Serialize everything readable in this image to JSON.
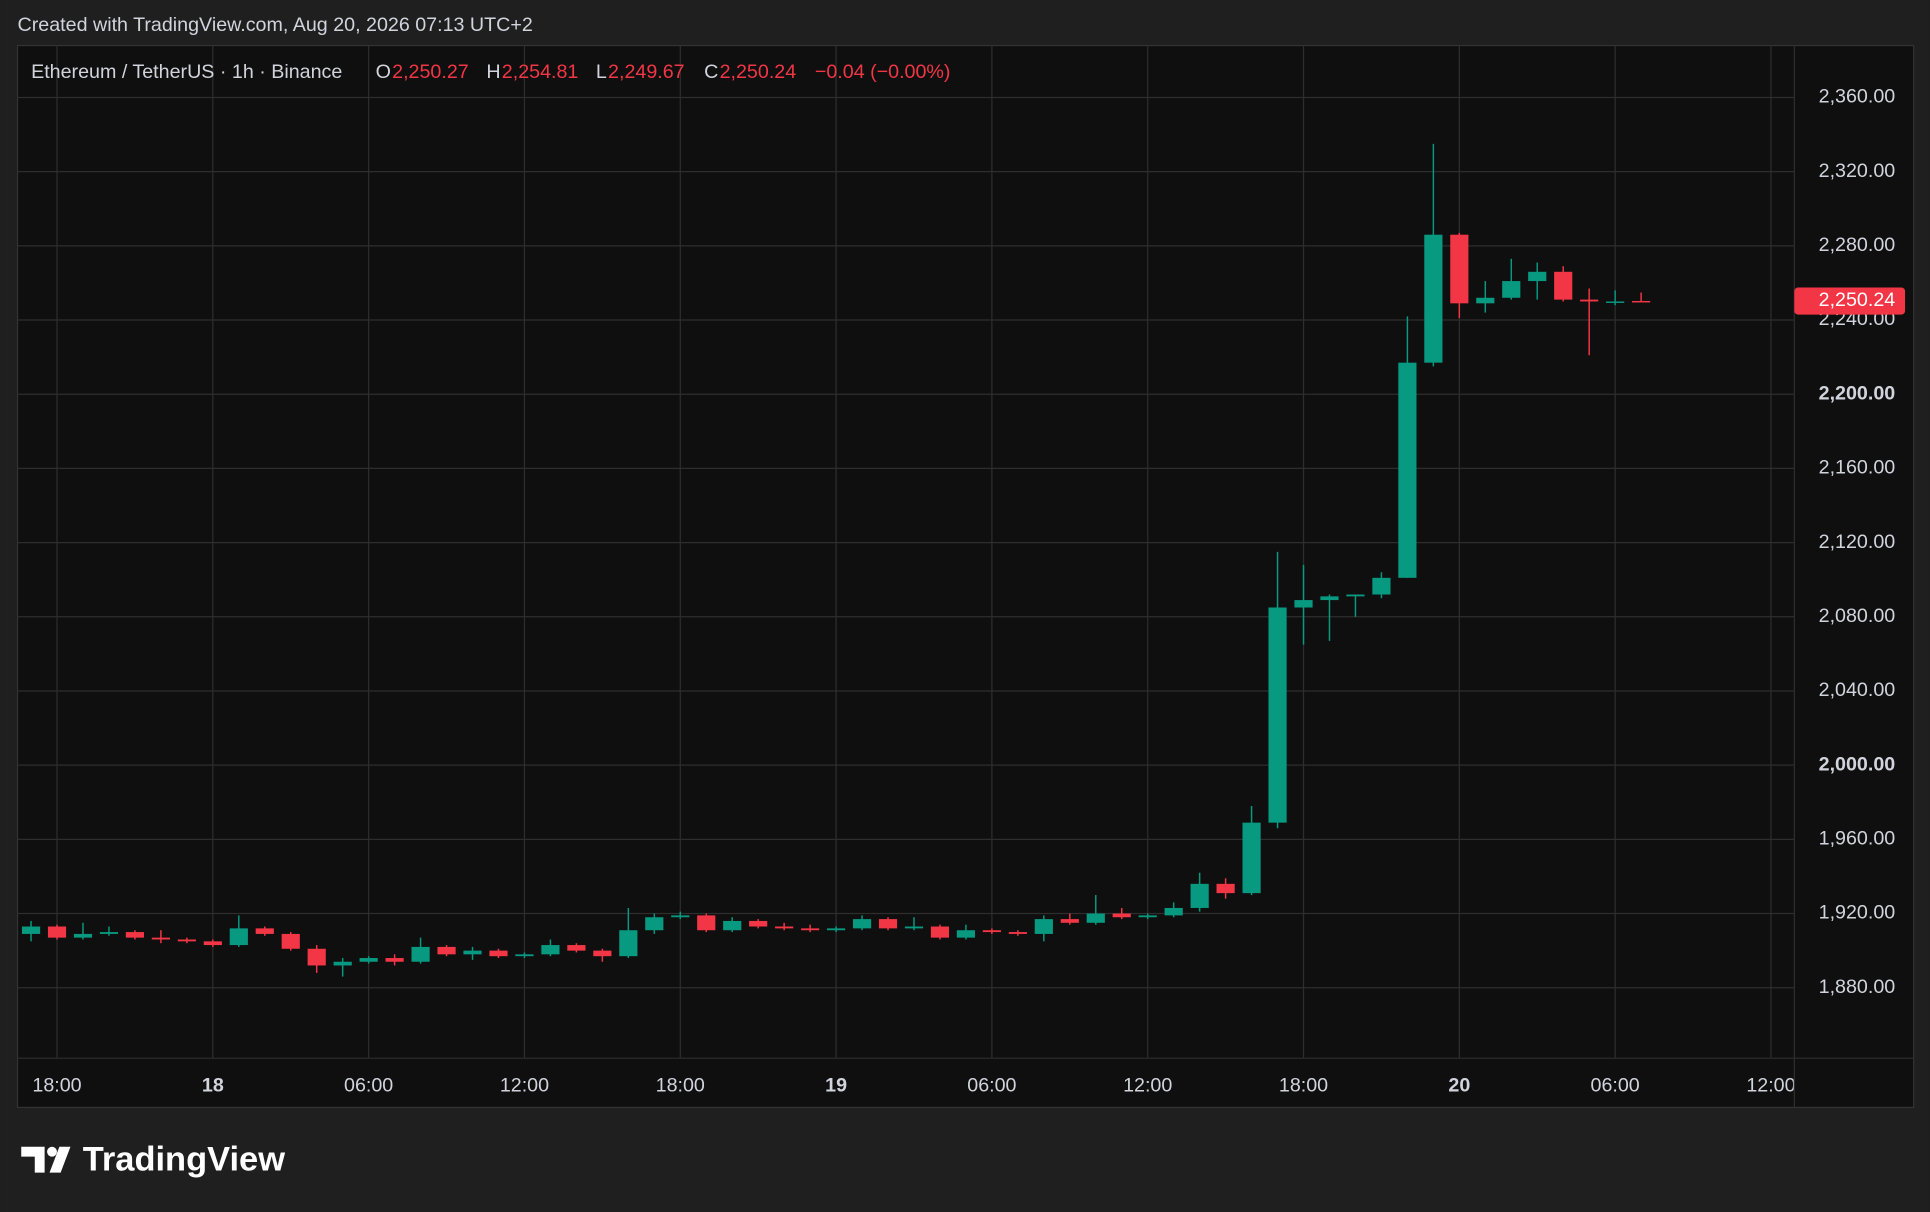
{
  "header": {
    "credit": "Created with TradingView.com, Aug 20, 2026 07:13 UTC+2"
  },
  "chart_data": {
    "type": "candlestick",
    "symbol": "Ethereum / TetherUS · 1h · Binance",
    "ohlc_legend": [
      {
        "key": "O",
        "label": "2,250.27"
      },
      {
        "key": "H",
        "label": "2,254.81"
      },
      {
        "key": "L",
        "label": "2,249.67"
      },
      {
        "key": "C",
        "label": "2,250.24"
      }
    ],
    "change": "−0.04 (−0.00%)",
    "last_price_label": "2,250.24",
    "up_color": "#089981",
    "down_color": "#f23645",
    "x": [
      17,
      18,
      19,
      20,
      21,
      22,
      23,
      24,
      25,
      26,
      27,
      28,
      29,
      30,
      31,
      32,
      33,
      34,
      35,
      36,
      37,
      38,
      39,
      40,
      41,
      42,
      43,
      44,
      45,
      46,
      47,
      48,
      49,
      50,
      51,
      52,
      53,
      54,
      55,
      56,
      57,
      58,
      59,
      60,
      61,
      62,
      63,
      64,
      65,
      66,
      67,
      68,
      69,
      70,
      71,
      72,
      73,
      74,
      75,
      76,
      77,
      78,
      79
    ],
    "open": [
      1909,
      1913,
      1907,
      1909,
      1910,
      1907,
      1906,
      1905,
      1903,
      1912,
      1909,
      1901,
      1892,
      1894,
      1896,
      1894,
      1902,
      1898,
      1900,
      1897,
      1898,
      1903,
      1900,
      1897,
      1911,
      1918,
      1919,
      1911,
      1916,
      1913,
      1912,
      1911,
      1912,
      1917,
      1912,
      1913,
      1907,
      1911,
      1910,
      1909,
      1917,
      1915,
      1920,
      1918,
      1919,
      1923,
      1936,
      1931,
      1969,
      2085,
      2089,
      2091,
      2092,
      2101,
      2217,
      2286,
      2249,
      2252,
      2261,
      2266,
      2251,
      2250,
      2250.27
    ],
    "high": [
      1916,
      1914,
      1915,
      1913,
      1911,
      1911,
      1907,
      1906,
      1919,
      1913,
      1910,
      1903,
      1896,
      1897,
      1898,
      1907,
      1903,
      1902,
      1901,
      1899,
      1906,
      1904,
      1901,
      1923,
      1920,
      1921,
      1920,
      1918,
      1917,
      1915,
      1914,
      1913,
      1919,
      1918,
      1918,
      1914,
      1914,
      1912,
      1911,
      1919,
      1920,
      1930,
      1923,
      1920,
      1926,
      1942,
      1939,
      1978,
      2115,
      2108,
      2092,
      2092,
      2104,
      2242,
      2335,
      2287,
      2261,
      2273,
      2271,
      2269,
      2257,
      2256,
      2254.81
    ],
    "low": [
      1905,
      1906,
      1906,
      1908,
      1906,
      1904,
      1904,
      1902,
      1902,
      1908,
      1900,
      1888,
      1886,
      1893,
      1892,
      1893,
      1897,
      1895,
      1896,
      1896,
      1897,
      1899,
      1894,
      1896,
      1909,
      1917,
      1910,
      1910,
      1912,
      1911,
      1910,
      1910,
      1911,
      1911,
      1911,
      1906,
      1906,
      1909,
      1908,
      1905,
      1914,
      1914,
      1917,
      1917,
      1918,
      1921,
      1928,
      1930,
      1966,
      2065,
      2067,
      2080,
      2090,
      2101,
      2215,
      2241,
      2244,
      2251,
      2251,
      2250,
      2221,
      2248,
      2249.67
    ],
    "close": [
      1913,
      1907,
      1909,
      1910,
      1907,
      1906,
      1905,
      1903,
      1912,
      1909,
      1901,
      1892,
      1894,
      1896,
      1894,
      1902,
      1898,
      1900,
      1897,
      1898,
      1903,
      1900,
      1897,
      1911,
      1918,
      1919,
      1911,
      1916,
      1913,
      1912,
      1911,
      1912,
      1917,
      1912,
      1913,
      1907,
      1911,
      1910,
      1909,
      1917,
      1915,
      1920,
      1918,
      1919,
      1923,
      1936,
      1931,
      1969,
      2085,
      2089,
      2091,
      2092,
      2101,
      2217,
      2286,
      2249,
      2252,
      2261,
      2266,
      2251,
      2250,
      2250,
      2250.24
    ],
    "xlim": [
      16.48,
      84.9
    ],
    "xticks": [
      {
        "value": 18,
        "label": "18:00"
      },
      {
        "value": 24,
        "label": "18"
      },
      {
        "value": 30,
        "label": "06:00"
      },
      {
        "value": 36,
        "label": "12:00"
      },
      {
        "value": 42,
        "label": "18:00"
      },
      {
        "value": 48,
        "label": "19"
      },
      {
        "value": 54,
        "label": "06:00"
      },
      {
        "value": 60,
        "label": "12:00"
      },
      {
        "value": 66,
        "label": "18:00"
      },
      {
        "value": 72,
        "label": "20"
      },
      {
        "value": 78,
        "label": "06:00"
      },
      {
        "value": 84,
        "label": "12:00"
      }
    ],
    "ylim": [
      1842,
      2388
    ],
    "yticks": [
      {
        "value": 1880,
        "label": "1,880.00"
      },
      {
        "value": 1920,
        "label": "1,920.00"
      },
      {
        "value": 1960,
        "label": "1,960.00"
      },
      {
        "value": 2000,
        "label": "2,000.00"
      },
      {
        "value": 2040,
        "label": "2,040.00"
      },
      {
        "value": 2080,
        "label": "2,080.00"
      },
      {
        "value": 2120,
        "label": "2,120.00"
      },
      {
        "value": 2160,
        "label": "2,160.00"
      },
      {
        "value": 2200,
        "label": "2,200.00"
      },
      {
        "value": 2240,
        "label": "2,240.00"
      },
      {
        "value": 2280,
        "label": "2,280.00"
      },
      {
        "value": 2320,
        "label": "2,320.00"
      },
      {
        "value": 2360,
        "label": "2,360.00"
      }
    ],
    "grid": true
  },
  "footer": {
    "brand": "TradingView"
  }
}
